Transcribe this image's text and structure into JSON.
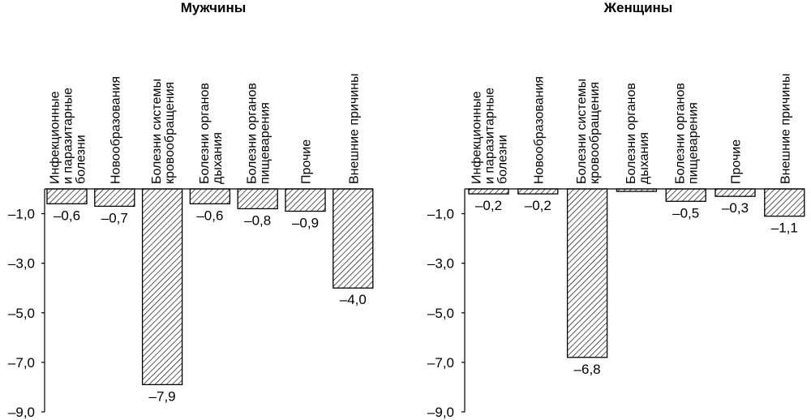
{
  "chart_data": [
    {
      "type": "bar",
      "title": "Мужчины",
      "categories": [
        [
          "Инфекционные",
          "и паразитарные",
          "болезни"
        ],
        [
          "Новообразования"
        ],
        [
          "Болезни системы",
          "кровообращения"
        ],
        [
          "Болезни органов",
          "дыхания"
        ],
        [
          "Болезни органов",
          "пищеварения"
        ],
        [
          "Прочие"
        ],
        [
          "Внешние причины"
        ]
      ],
      "values": [
        -0.6,
        -0.7,
        -7.9,
        -0.6,
        -0.8,
        -0.9,
        -4.0
      ],
      "value_labels": [
        "–0,6",
        "–0,7",
        "–7,9",
        "–0,6",
        "–0,8",
        "–0,9",
        "–4,0"
      ],
      "ylim": [
        -9.0,
        0
      ],
      "yticks": [
        -1.0,
        -3.0,
        -5.0,
        -7.0,
        -9.0
      ],
      "ytick_labels": [
        "–1,0",
        "–3,0",
        "–5,0",
        "–7,0",
        "–9,0"
      ],
      "grid": false,
      "pattern": "diagonal-hatch"
    },
    {
      "type": "bar",
      "title": "Женщины",
      "categories": [
        [
          "Инфекционные",
          "и паразитарные",
          "болезни"
        ],
        [
          "Новообразования"
        ],
        [
          "Болезни системы",
          "кровообращения"
        ],
        [
          "Болезни органов",
          "дыхания"
        ],
        [
          "Болезни органов",
          "пищеварения"
        ],
        [
          "Прочие"
        ],
        [
          "Внешние причины"
        ]
      ],
      "values": [
        -0.2,
        -0.2,
        -6.8,
        -0.1,
        -0.5,
        -0.3,
        -1.1
      ],
      "value_labels": [
        "–0,2",
        "–0,2",
        "–6,8",
        "",
        "–0,5",
        "–0,3",
        "–1,1"
      ],
      "ylim": [
        -9.0,
        0
      ],
      "yticks": [
        -1.0,
        -3.0,
        -5.0,
        -7.0,
        -9.0
      ],
      "ytick_labels": [
        "–1,0",
        "–3,0",
        "–5,0",
        "–7,0",
        "–9,0"
      ],
      "grid": false,
      "pattern": "diagonal-hatch"
    }
  ]
}
